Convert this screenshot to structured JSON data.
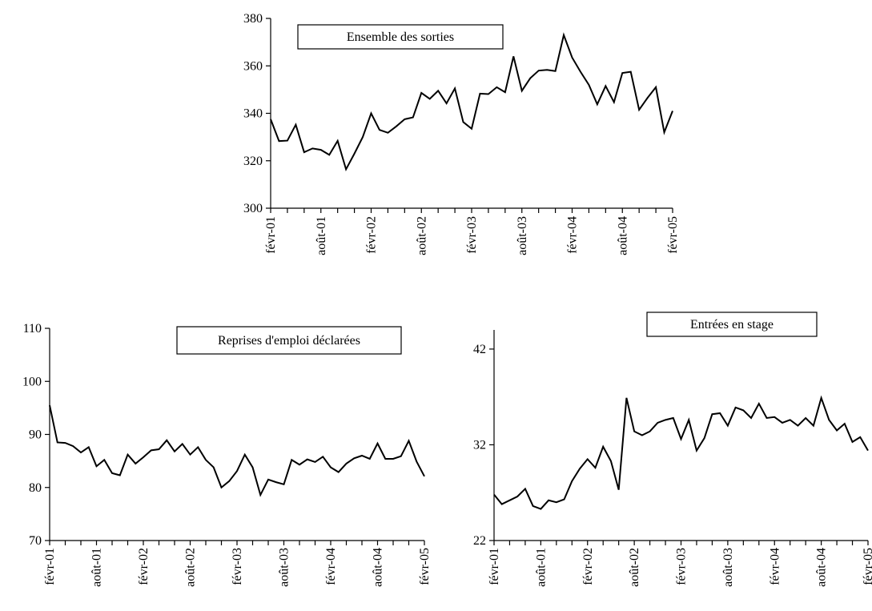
{
  "chart_data": [
    {
      "type": "line",
      "title": "Ensemble des sorties",
      "xlabel": "",
      "ylabel": "",
      "ylim": [
        300,
        380
      ],
      "yticks": [
        "300",
        "320",
        "340",
        "360",
        "380"
      ],
      "xticks": [
        "févr-01",
        "août-01",
        "févr-02",
        "août-02",
        "févr-03",
        "août-03",
        "févr-04",
        "août-04",
        "févr-05"
      ],
      "legend": "none",
      "grid": false,
      "series": [
        {
          "values": [
            337.5,
            328.3,
            328.5,
            335.2,
            323.6,
            325.2,
            324.6,
            322.5,
            328.4,
            316.4,
            323.0,
            330.0,
            340.0,
            333.0,
            331.8,
            334.5,
            337.5,
            338.3,
            348.6,
            346.1,
            349.5,
            344.2,
            350.5,
            336.3,
            333.5,
            348.3,
            348.1,
            351.0,
            348.9,
            364.0,
            349.5,
            354.8,
            358.0,
            358.3,
            357.8,
            373.0,
            363.5,
            357.5,
            352.0,
            343.8,
            351.5,
            344.7,
            357.0,
            357.5,
            341.5,
            346.5,
            351.0,
            332.0,
            341.0
          ]
        }
      ]
    },
    {
      "type": "line",
      "title": "Reprises d'emploi déclarées",
      "xlabel": "",
      "ylabel": "",
      "ylim": [
        70,
        110
      ],
      "yticks": [
        "70",
        "80",
        "90",
        "100",
        "110"
      ],
      "xticks": [
        "févr-01",
        "août-01",
        "févr-02",
        "août-02",
        "févr-03",
        "août-03",
        "févr-04",
        "août-04",
        "févr-05"
      ],
      "legend": "none",
      "grid": false,
      "series": [
        {
          "values": [
            95.5,
            88.5,
            88.4,
            87.8,
            86.6,
            87.6,
            84.0,
            85.2,
            82.7,
            82.3,
            86.2,
            84.5,
            85.7,
            87.0,
            87.2,
            88.9,
            86.8,
            88.2,
            86.2,
            87.6,
            85.2,
            83.8,
            80.0,
            81.2,
            83.1,
            86.2,
            83.8,
            78.6,
            81.5,
            81.0,
            80.6,
            85.2,
            84.3,
            85.3,
            84.8,
            85.8,
            83.8,
            82.9,
            84.5,
            85.5,
            86.0,
            85.4,
            88.3,
            85.4,
            85.4,
            85.9,
            88.8,
            84.9,
            82.1
          ]
        }
      ]
    },
    {
      "type": "line",
      "title": "Entrées en stage",
      "xlabel": "",
      "ylabel": "",
      "ylim": [
        22,
        44
      ],
      "yticks": [
        "22",
        "32",
        "42"
      ],
      "xticks": [
        "févr-01",
        "août-01",
        "févr-02",
        "août-02",
        "févr-03",
        "août-03",
        "févr-04",
        "août-04",
        "févr-05"
      ],
      "legend": "none",
      "grid": false,
      "series": [
        {
          "values": [
            26.8,
            25.8,
            26.2,
            26.6,
            27.4,
            25.6,
            25.3,
            26.2,
            26.0,
            26.3,
            28.2,
            29.5,
            30.5,
            29.6,
            31.8,
            30.3,
            27.3,
            36.9,
            33.4,
            33.0,
            33.4,
            34.3,
            34.6,
            34.8,
            32.6,
            34.6,
            31.4,
            32.7,
            35.2,
            35.3,
            34.0,
            35.9,
            35.6,
            34.8,
            36.3,
            34.8,
            34.9,
            34.3,
            34.6,
            34.0,
            34.8,
            34.0,
            36.9,
            34.6,
            33.5,
            34.2,
            32.3,
            32.8,
            31.4
          ]
        }
      ]
    }
  ]
}
